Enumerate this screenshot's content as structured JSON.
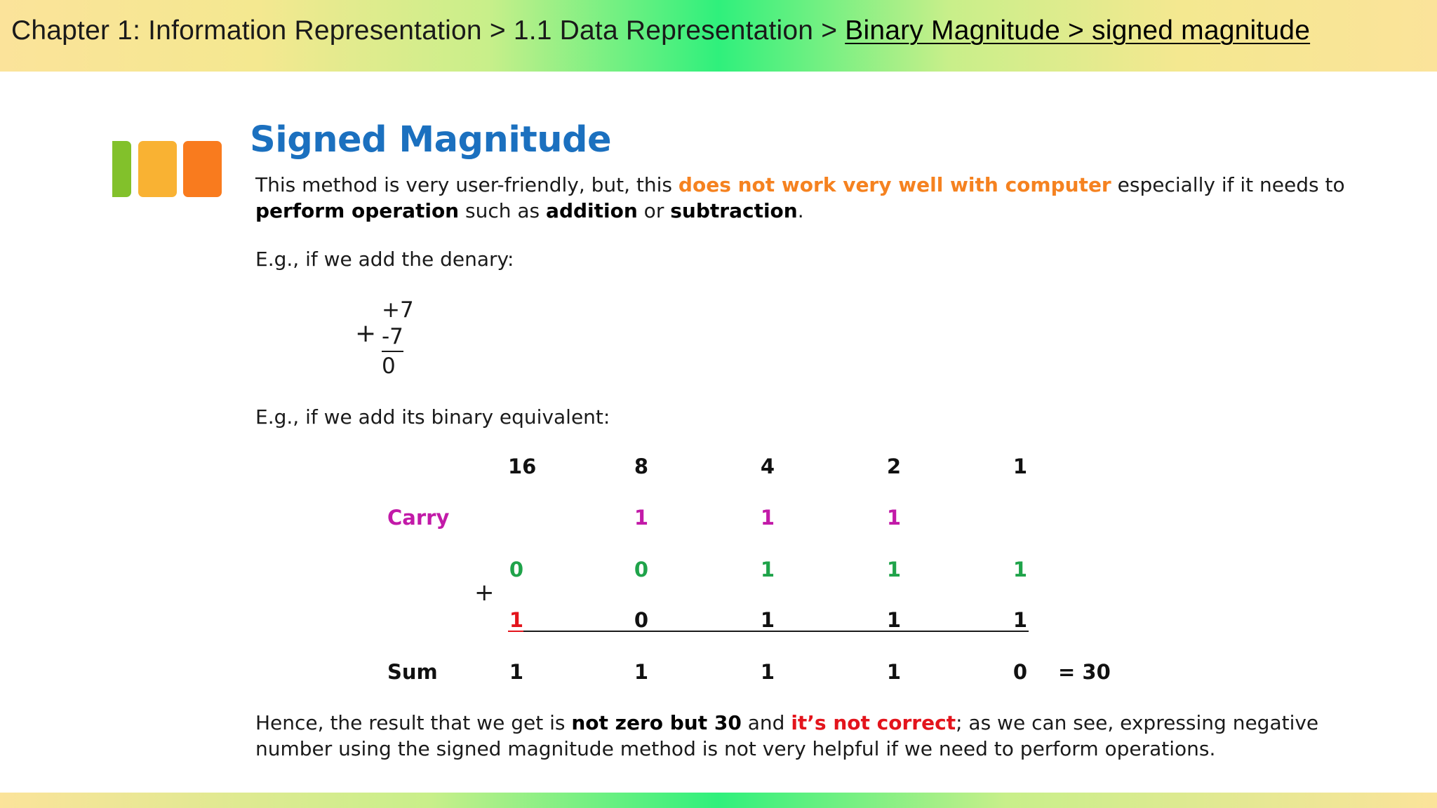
{
  "header": {
    "breadcrumb_prefix": "Chapter 1: Information Representation > 1.1 Data Representation > ",
    "breadcrumb_link": "Binary Magnitude  > signed magnitude"
  },
  "title": "Signed Magnitude",
  "intro": {
    "part1": "This method is very user-friendly, but, this ",
    "highlight": "does not work very well with computer",
    "part2": " especially if it needs to",
    "bold1": "perform operation",
    "part3": " such as ",
    "bold2": "addition",
    "part4": " or ",
    "bold3": "subtraction",
    "part5": "."
  },
  "example_denary": {
    "label": "E.g., if we add the denary:",
    "plus": "+",
    "top": "+7",
    "bottom": "-7",
    "result": "0"
  },
  "example_binary": {
    "label": "E.g., if we add its binary equivalent:",
    "place_values": [
      "16",
      "8",
      "4",
      "2",
      "1"
    ],
    "carry_label": "Carry",
    "carry": [
      "",
      "1",
      "1",
      "1",
      ""
    ],
    "plus": "+",
    "row1": [
      "0",
      "0",
      "1",
      "1",
      "1"
    ],
    "row2": [
      "1",
      "0",
      "1",
      "1",
      "1"
    ],
    "sum_label": "Sum",
    "sum": [
      "1",
      "1",
      "1",
      "1",
      "0"
    ],
    "sum_result": "= 30"
  },
  "conclusion": {
    "part1": "Hence, the result that we get is ",
    "bold1": "not zero but 30",
    "part2": " and ",
    "red": "it’s not correct",
    "part3": "; as we can see, expressing negative",
    "line2": "number using the signed magnitude method is not very helpful if we need to perform operations."
  },
  "colors": {
    "title": "#1b70bf",
    "highlight_orange": "#f58220",
    "carry_magenta": "#c21aa8",
    "row1_green": "#1fa34a",
    "error_red": "#e3141c",
    "logo": [
      "#82c12b",
      "#f9b233",
      "#f97b1e"
    ]
  }
}
